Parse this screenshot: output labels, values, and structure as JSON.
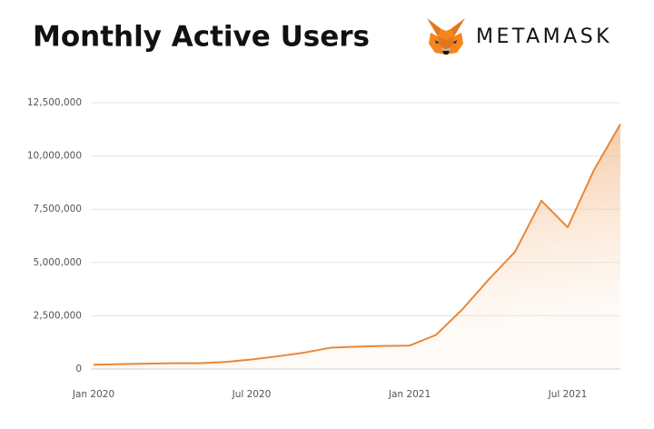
{
  "chart_data": {
    "type": "area",
    "title": "Monthly Active Users",
    "brand": "METAMASK",
    "categories": [
      "Jan 2020",
      null,
      null,
      null,
      null,
      null,
      "Jul 2020",
      null,
      null,
      null,
      null,
      null,
      "Jan 2021",
      null,
      null,
      null,
      null,
      null,
      "Jul 2021",
      null,
      null
    ],
    "values": [
      200000,
      230000,
      250000,
      270000,
      270000,
      330000,
      450000,
      600000,
      770000,
      1000000,
      1050000,
      1080000,
      1100000,
      1600000,
      2800000,
      4200000,
      5500000,
      7900000,
      6650000,
      9350000,
      11500000
    ],
    "color": "#e8883a",
    "ylim": [
      0,
      12500000
    ],
    "yticks": [
      0,
      {
        "value": 2500000,
        "label": "2,500,000"
      },
      {
        "value": 5000000,
        "label": "5,000,000"
      },
      {
        "value": 7500000,
        "label": "7,500,000"
      },
      {
        "value": 10000000,
        "label": "10,000,000"
      },
      {
        "value": 12500000,
        "label": "12,500,000"
      }
    ],
    "grid": true
  }
}
